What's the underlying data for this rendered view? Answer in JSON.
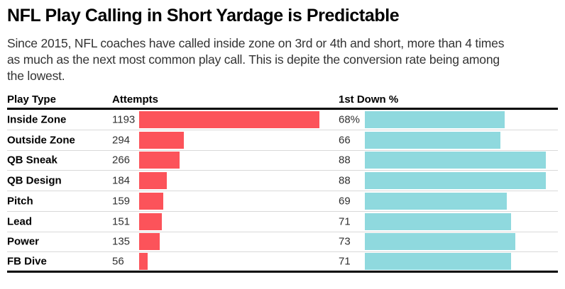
{
  "title": "NFL Play Calling in Short Yardage is Predictable",
  "subtitle_lines": [
    "Since 2015, NFL coaches have called inside zone on 3rd or 4th and short, more than 4 times",
    "as much as the next most common play call. This is depite the conversion rate being among",
    "the lowest."
  ],
  "table": {
    "columns": [
      "Play Type",
      "Attempts",
      "1st Down %"
    ],
    "rows": [
      {
        "play_type": "Inside Zone",
        "attempts": 1193,
        "attempts_label": "1193",
        "first_down_pct": 68,
        "first_down_label": "68%"
      },
      {
        "play_type": "Outside Zone",
        "attempts": 294,
        "attempts_label": "294",
        "first_down_pct": 66,
        "first_down_label": "66"
      },
      {
        "play_type": "QB Sneak",
        "attempts": 266,
        "attempts_label": "266",
        "first_down_pct": 88,
        "first_down_label": "88"
      },
      {
        "play_type": "QB Design",
        "attempts": 184,
        "attempts_label": "184",
        "first_down_pct": 88,
        "first_down_label": "88"
      },
      {
        "play_type": "Pitch",
        "attempts": 159,
        "attempts_label": "159",
        "first_down_pct": 69,
        "first_down_label": "69"
      },
      {
        "play_type": "Lead",
        "attempts": 151,
        "attempts_label": "151",
        "first_down_pct": 71,
        "first_down_label": "71"
      },
      {
        "play_type": "Power",
        "attempts": 135,
        "attempts_label": "135",
        "first_down_pct": 73,
        "first_down_label": "73"
      },
      {
        "play_type": "FB Dive",
        "attempts": 56,
        "attempts_label": "56",
        "first_down_pct": 71,
        "first_down_label": "71"
      }
    ]
  },
  "chart_data": {
    "type": "bar",
    "orientation": "horizontal",
    "title": "NFL Play Calling in Short Yardage is Predictable",
    "subtitle": "Since 2015, NFL coaches have called inside zone on 3rd or 4th and short, more than 4 times as much as the next most common play call. This is depite the conversion rate being among the lowest.",
    "categories": [
      "Inside Zone",
      "Outside Zone",
      "QB Sneak",
      "QB Design",
      "Pitch",
      "Lead",
      "Power",
      "FB Dive"
    ],
    "series": [
      {
        "name": "Attempts",
        "values": [
          1193,
          294,
          266,
          184,
          159,
          151,
          135,
          56
        ]
      },
      {
        "name": "1st Down %",
        "values": [
          68,
          66,
          88,
          88,
          69,
          71,
          73,
          71
        ]
      }
    ],
    "value_labels_shown": true,
    "first_row_unit_suffix": "%",
    "layout": "table with two bar columns; each bar column scaled independently to its max value",
    "grid": "thin gray separators between rows, thick black rules under header and below last row",
    "legend": "none"
  },
  "colors": {
    "attempts_bar": "#fc535a",
    "first_down_bar": "#8fd9de",
    "separator": "#d9d9d9",
    "rule": "#000000",
    "title_text": "#000000",
    "subtitle_text": "#333333"
  }
}
